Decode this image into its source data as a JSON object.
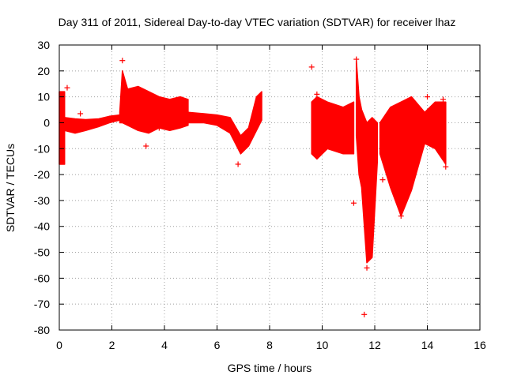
{
  "chart_data": {
    "type": "scatter",
    "title": "Day 311 of 2011, Sidereal Day-to-day VTEC variation (SDTVAR) for receiver lhaz",
    "xlabel": "GPS time / hours",
    "ylabel": "SDTVAR / TECUs",
    "xlim": [
      0,
      16
    ],
    "ylim": [
      -80,
      30
    ],
    "xticks": [
      0,
      2,
      4,
      6,
      8,
      10,
      12,
      14,
      16
    ],
    "yticks": [
      30,
      20,
      10,
      0,
      -10,
      -20,
      -30,
      -40,
      -50,
      -60,
      -70,
      -80
    ],
    "grid": true,
    "marker": "+",
    "series_color": "#ff0000",
    "series": [
      {
        "name": "SDTVAR",
        "dense_bands": [
          {
            "x": [
              0.0,
              0.05,
              0.15,
              0.2,
              0.2,
              0.15,
              0.05,
              0.0
            ],
            "y": [
              12,
              12,
              12,
              12,
              -16,
              -16,
              -16,
              -16
            ]
          },
          {
            "x": [
              0.2,
              0.6,
              1.0,
              1.5,
              1.9,
              2.3,
              2.3,
              1.9,
              1.5,
              1.0,
              0.6,
              0.2
            ],
            "y": [
              2,
              1.5,
              1.2,
              1.5,
              2.5,
              3,
              1,
              0,
              -1.5,
              -3,
              -4,
              -3
            ]
          },
          {
            "x": [
              2.3,
              2.4,
              2.6,
              3.0,
              3.4,
              3.8,
              4.2,
              4.6,
              4.9,
              4.9,
              4.6,
              4.2,
              3.8,
              3.4,
              3.0,
              2.6,
              2.4,
              2.3
            ],
            "y": [
              4,
              20,
              13,
              14,
              12,
              10,
              9,
              10,
              9,
              -1,
              -2,
              -3,
              -2,
              -4,
              -3,
              -1,
              0,
              0
            ]
          },
          {
            "x": [
              4.9,
              5.5,
              6.0,
              6.5,
              6.9,
              7.2,
              7.5,
              7.7,
              7.7,
              7.5,
              7.2,
              6.9,
              6.5,
              6.0,
              5.5,
              4.9
            ],
            "y": [
              4,
              3.5,
              3,
              2,
              -5,
              -2,
              10,
              12,
              1,
              -3,
              -9,
              -12,
              -4,
              -1,
              0,
              0
            ]
          },
          {
            "x": [
              9.6,
              9.8,
              10.2,
              10.8,
              11.2,
              11.2,
              10.8,
              10.2,
              9.8,
              9.6
            ],
            "y": [
              8,
              10,
              8,
              6,
              8,
              -12,
              -12,
              -10,
              -14,
              -12
            ]
          },
          {
            "x": [
              11.3,
              11.4,
              11.5,
              11.7,
              11.9,
              12.1,
              12.1,
              11.9,
              11.7,
              11.5,
              11.4,
              11.3
            ],
            "y": [
              24,
              10,
              5,
              0,
              2,
              0,
              -15,
              -52,
              -54,
              -25,
              -20,
              -5
            ]
          },
          {
            "x": [
              12.2,
              12.6,
              13.0,
              13.4,
              13.9,
              14.3,
              14.7,
              14.7,
              14.3,
              13.9,
              13.4,
              13.0,
              12.6,
              12.2
            ],
            "y": [
              0,
              6,
              8,
              10,
              4,
              8,
              8,
              -16,
              -10,
              -8,
              -26,
              -36,
              -25,
              -12
            ]
          }
        ],
        "points": [
          {
            "x": 0.3,
            "y": 13.5
          },
          {
            "x": 0.8,
            "y": 3.5
          },
          {
            "x": 2.4,
            "y": 24
          },
          {
            "x": 3.3,
            "y": -9
          },
          {
            "x": 3.8,
            "y": -2
          },
          {
            "x": 6.8,
            "y": -16
          },
          {
            "x": 9.6,
            "y": 21.5
          },
          {
            "x": 9.8,
            "y": 11
          },
          {
            "x": 11.2,
            "y": -31
          },
          {
            "x": 11.3,
            "y": 24.5
          },
          {
            "x": 11.6,
            "y": -74
          },
          {
            "x": 11.7,
            "y": -56
          },
          {
            "x": 12.3,
            "y": -22
          },
          {
            "x": 13.0,
            "y": -36
          },
          {
            "x": 14.0,
            "y": 10
          },
          {
            "x": 14.6,
            "y": 9
          },
          {
            "x": 14.7,
            "y": -17
          }
        ]
      }
    ]
  }
}
